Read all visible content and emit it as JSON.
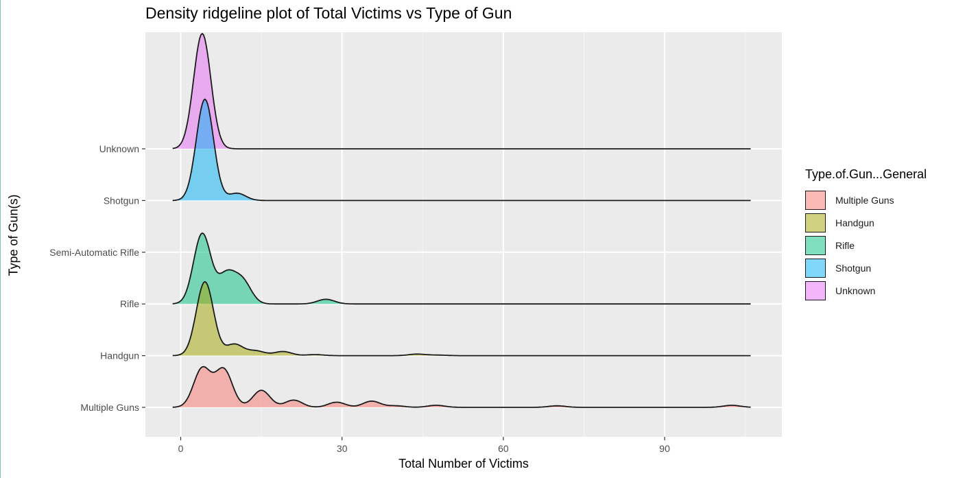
{
  "chart_data": {
    "type": "ridgeline-density",
    "title": "Density ridgeline plot of Total Victims vs Type of Gun",
    "xlabel": "Total Number of Victims",
    "ylabel": "Type of Gun(s)",
    "xlim": [
      -2,
      110
    ],
    "x_ticks": [
      0,
      30,
      60,
      90
    ],
    "y_categories": [
      "Multiple Guns",
      "Handgun",
      "Rifle",
      "Semi-Automatic Rifle",
      "Shotgun",
      "Unknown"
    ],
    "grid": true,
    "legend_title": "Type.of.Gun...General",
    "legend_position": "right",
    "series": [
      {
        "name": "Multiple Guns",
        "color": "#F8766D",
        "y": "Multiple Guns",
        "x_range": [
          -1.5,
          106
        ],
        "peaks": [
          [
            4,
            0.75
          ],
          [
            8,
            0.73
          ],
          [
            15,
            0.33
          ],
          [
            21,
            0.14
          ],
          [
            29,
            0.1
          ],
          [
            35.5,
            0.12
          ],
          [
            40,
            0.03
          ],
          [
            47.5,
            0.04
          ],
          [
            70,
            0.03
          ],
          [
            102.5,
            0.04
          ]
        ]
      },
      {
        "name": "Handgun",
        "color": "#A3A500",
        "y": "Handgun",
        "x_range": [
          -1.5,
          106
        ],
        "peaks": [
          [
            4.5,
            1.43
          ],
          [
            10,
            0.22
          ],
          [
            14,
            0.09
          ],
          [
            19,
            0.08
          ],
          [
            25,
            0.02
          ],
          [
            44,
            0.03
          ],
          [
            48,
            0.01
          ]
        ]
      },
      {
        "name": "Rifle",
        "color": "#00BF7D",
        "y": "Rifle",
        "x_range": [
          -1.5,
          106
        ],
        "peaks": [
          [
            4,
            1.36
          ],
          [
            8.5,
            0.55
          ],
          [
            11.5,
            0.43
          ],
          [
            27,
            0.09
          ]
        ]
      },
      {
        "name": "Shotgun",
        "color": "#00B0F6",
        "y": "Shotgun",
        "x_range": [
          -1.5,
          106
        ],
        "peaks": [
          [
            4.5,
            1.96
          ],
          [
            10.5,
            0.14
          ]
        ]
      },
      {
        "name": "Unknown",
        "color": "#E76BF3",
        "y": "Unknown",
        "x_range": [
          -1.5,
          106
        ],
        "peaks": [
          [
            4,
            2.23
          ]
        ]
      }
    ]
  }
}
